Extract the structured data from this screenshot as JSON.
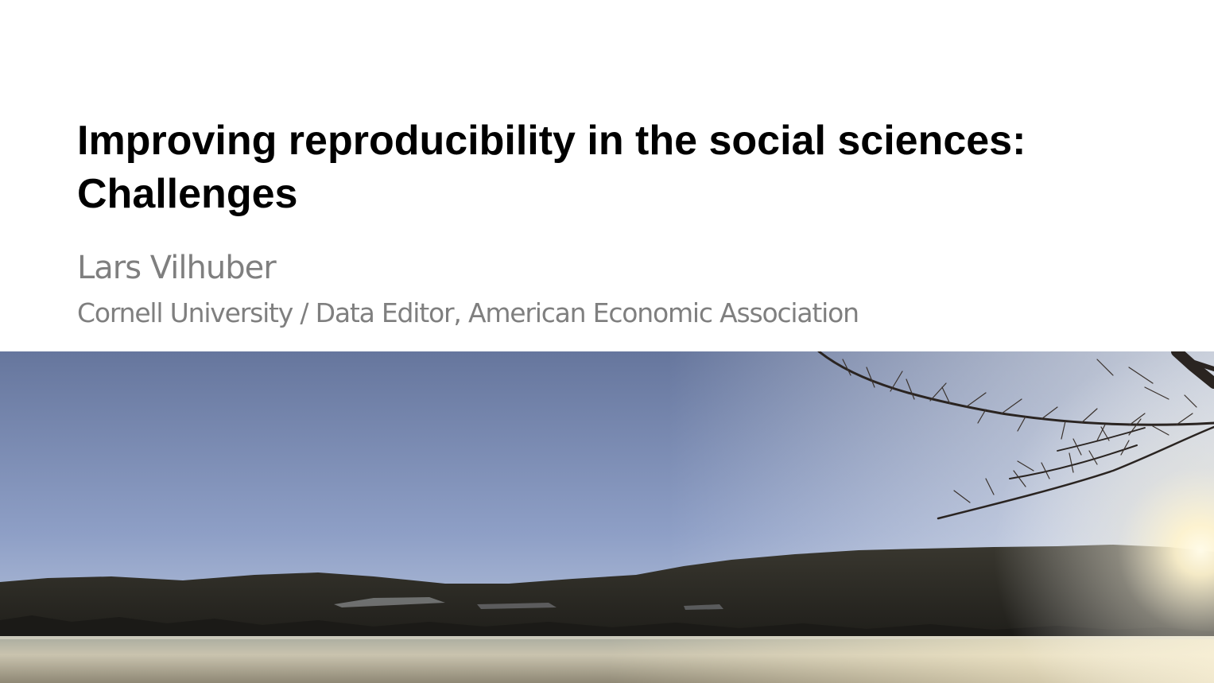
{
  "slide": {
    "title": "Improving reproducibility in the social sciences: Challenges",
    "author": "Lars Vilhuber",
    "affiliation": "Cornell University / Data Editor, American Economic Association"
  },
  "image": {
    "subject": "lake-landscape-photo",
    "colors": {
      "sky_top": "#6c7da3",
      "sky_bottom": "#b9c7e0",
      "hills": "#2b2a24",
      "water": "#b8b3a3",
      "sun": "#fff6d8"
    }
  }
}
